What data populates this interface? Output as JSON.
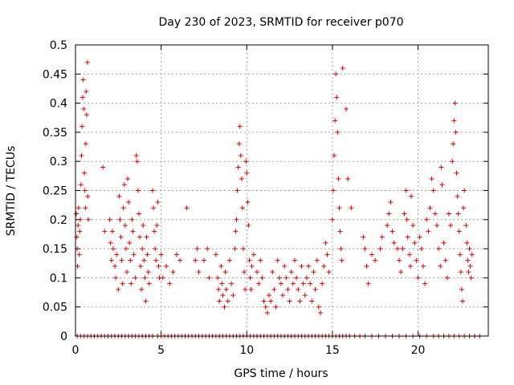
{
  "chart_data": {
    "type": "scatter",
    "title": "Day 230 of 2023, SRMTID for receiver p070",
    "xlabel": "GPS time / hours",
    "ylabel": "SRMTID / TECUs",
    "xlim": [
      0,
      24.1
    ],
    "ylim": [
      0,
      0.5
    ],
    "x_ticks": [
      0,
      5,
      10,
      15,
      20
    ],
    "x_tick_labels": [
      "0",
      "5",
      "10",
      "15",
      "20"
    ],
    "y_ticks": [
      0,
      0.05,
      0.1,
      0.15,
      0.2,
      0.25,
      0.3,
      0.35,
      0.4,
      0.45,
      0.5
    ],
    "y_tick_labels": [
      "0",
      "0.05",
      "0.1",
      "0.15",
      "0.2",
      "0.25",
      "0.3",
      "0.35",
      "0.4",
      "0.45",
      "0.5"
    ],
    "grid": true,
    "legend": "none",
    "marker": "plus",
    "series": [
      {
        "name": "SRMTID",
        "color": "#dd0000",
        "points": [
          [
            0.05,
            0.21
          ],
          [
            0.08,
            0.17
          ],
          [
            0.1,
            0.15
          ],
          [
            0.12,
            0.12
          ],
          [
            0.15,
            0.19
          ],
          [
            0.18,
            0.22
          ],
          [
            0.22,
            0.14
          ],
          [
            0.25,
            0.18
          ],
          [
            0.28,
            0.2
          ],
          [
            0.32,
            0.26
          ],
          [
            0.35,
            0.31
          ],
          [
            0.38,
            0.36
          ],
          [
            0.42,
            0.41
          ],
          [
            0.45,
            0.44
          ],
          [
            0.48,
            0.39
          ],
          [
            0.52,
            0.28
          ],
          [
            0.55,
            0.25
          ],
          [
            0.58,
            0.22
          ],
          [
            0.6,
            0.33
          ],
          [
            0.62,
            0.42
          ],
          [
            0.65,
            0.38
          ],
          [
            0.7,
            0.47
          ],
          [
            0.72,
            0.24
          ],
          [
            0.75,
            0.2
          ],
          [
            1.6,
            0.29
          ],
          [
            1.7,
            0.18
          ],
          [
            2.0,
            0.2
          ],
          [
            2.05,
            0.16
          ],
          [
            2.1,
            0.13
          ],
          [
            2.15,
            0.18
          ],
          [
            2.2,
            0.15
          ],
          [
            2.3,
            0.12
          ],
          [
            2.35,
            0.1
          ],
          [
            2.4,
            0.14
          ],
          [
            2.5,
            0.08
          ],
          [
            2.55,
            0.24
          ],
          [
            2.6,
            0.2
          ],
          [
            2.65,
            0.17
          ],
          [
            2.7,
            0.13
          ],
          [
            2.75,
            0.09
          ],
          [
            2.8,
            0.22
          ],
          [
            2.85,
            0.26
          ],
          [
            2.9,
            0.19
          ],
          [
            2.95,
            0.15
          ],
          [
            3.0,
            0.11
          ],
          [
            3.05,
            0.27
          ],
          [
            3.1,
            0.23
          ],
          [
            3.15,
            0.16
          ],
          [
            3.2,
            0.13
          ],
          [
            3.25,
            0.09
          ],
          [
            3.3,
            0.2
          ],
          [
            3.35,
            0.18
          ],
          [
            3.4,
            0.14
          ],
          [
            3.5,
            0.1
          ],
          [
            3.55,
            0.31
          ],
          [
            3.6,
            0.3
          ],
          [
            3.65,
            0.25
          ],
          [
            3.7,
            0.21
          ],
          [
            3.75,
            0.17
          ],
          [
            3.8,
            0.12
          ],
          [
            3.85,
            0.08
          ],
          [
            3.9,
            0.15
          ],
          [
            3.95,
            0.19
          ],
          [
            4.0,
            0.13
          ],
          [
            4.05,
            0.1
          ],
          [
            4.1,
            0.06
          ],
          [
            4.15,
            0.17
          ],
          [
            4.2,
            0.14
          ],
          [
            4.25,
            0.11
          ],
          [
            4.3,
            0.09
          ],
          [
            4.5,
            0.25
          ],
          [
            4.55,
            0.22
          ],
          [
            4.6,
            0.18
          ],
          [
            4.65,
            0.15
          ],
          [
            4.7,
            0.13
          ],
          [
            4.75,
            0.19
          ],
          [
            4.8,
            0.23
          ],
          [
            4.85,
            0.12
          ],
          [
            4.9,
            0.1
          ],
          [
            5.0,
            0.14
          ],
          [
            5.1,
            0.1
          ],
          [
            5.3,
            0.12
          ],
          [
            5.5,
            0.09
          ],
          [
            5.7,
            0.11
          ],
          [
            5.9,
            0.14
          ],
          [
            6.1,
            0.13
          ],
          [
            6.5,
            0.22
          ],
          [
            7.0,
            0.13
          ],
          [
            7.1,
            0.15
          ],
          [
            7.2,
            0.11
          ],
          [
            7.5,
            0.13
          ],
          [
            7.7,
            0.15
          ],
          [
            7.8,
            0.1
          ],
          [
            8.2,
            0.14
          ],
          [
            8.3,
            0.1
          ],
          [
            8.35,
            0.08
          ],
          [
            8.4,
            0.06
          ],
          [
            8.5,
            0.12
          ],
          [
            8.55,
            0.09
          ],
          [
            8.6,
            0.07
          ],
          [
            8.7,
            0.05
          ],
          [
            8.75,
            0.11
          ],
          [
            8.8,
            0.08
          ],
          [
            8.9,
            0.06
          ],
          [
            9.0,
            0.13
          ],
          [
            9.1,
            0.09
          ],
          [
            9.2,
            0.07
          ],
          [
            9.3,
            0.15
          ],
          [
            9.35,
            0.18
          ],
          [
            9.4,
            0.2
          ],
          [
            9.45,
            0.25
          ],
          [
            9.5,
            0.29
          ],
          [
            9.55,
            0.33
          ],
          [
            9.6,
            0.36
          ],
          [
            9.65,
            0.31
          ],
          [
            9.7,
            0.27
          ],
          [
            9.75,
            0.22
          ],
          [
            9.8,
            0.15
          ],
          [
            9.85,
            0.11
          ],
          [
            9.9,
            0.08
          ],
          [
            9.95,
            0.3
          ],
          [
            10.0,
            0.28
          ],
          [
            10.05,
            0.23
          ],
          [
            10.1,
            0.19
          ],
          [
            10.15,
            0.13
          ],
          [
            10.2,
            0.1
          ],
          [
            10.25,
            0.08
          ],
          [
            10.3,
            0.12
          ],
          [
            10.4,
            0.14
          ],
          [
            10.6,
            0.11
          ],
          [
            10.7,
            0.09
          ],
          [
            10.8,
            0.13
          ],
          [
            10.9,
            0.1
          ],
          [
            11.0,
            0.06
          ],
          [
            11.1,
            0.05
          ],
          [
            11.2,
            0.04
          ],
          [
            11.3,
            0.07
          ],
          [
            11.4,
            0.06
          ],
          [
            11.5,
            0.11
          ],
          [
            11.6,
            0.08
          ],
          [
            11.7,
            0.05
          ],
          [
            11.8,
            0.13
          ],
          [
            11.9,
            0.1
          ],
          [
            12.0,
            0.09
          ],
          [
            12.1,
            0.07
          ],
          [
            12.2,
            0.12
          ],
          [
            12.3,
            0.1
          ],
          [
            12.4,
            0.08
          ],
          [
            12.5,
            0.06
          ],
          [
            12.6,
            0.11
          ],
          [
            12.7,
            0.09
          ],
          [
            12.8,
            0.13
          ],
          [
            12.9,
            0.1
          ],
          [
            13.0,
            0.08
          ],
          [
            13.1,
            0.06
          ],
          [
            13.2,
            0.12
          ],
          [
            13.3,
            0.09
          ],
          [
            13.4,
            0.07
          ],
          [
            13.5,
            0.1
          ],
          [
            13.6,
            0.12
          ],
          [
            13.7,
            0.09
          ],
          [
            13.8,
            0.06
          ],
          [
            13.9,
            0.11
          ],
          [
            14.0,
            0.08
          ],
          [
            14.1,
            0.13
          ],
          [
            14.2,
            0.05
          ],
          [
            14.3,
            0.04
          ],
          [
            14.4,
            0.09
          ],
          [
            14.5,
            0.12
          ],
          [
            14.6,
            0.16
          ],
          [
            14.7,
            0.14
          ],
          [
            14.8,
            0.11
          ],
          [
            15.0,
            0.2
          ],
          [
            15.05,
            0.25
          ],
          [
            15.1,
            0.31
          ],
          [
            15.15,
            0.37
          ],
          [
            15.2,
            0.45
          ],
          [
            15.25,
            0.41
          ],
          [
            15.3,
            0.35
          ],
          [
            15.35,
            0.27
          ],
          [
            15.4,
            0.22
          ],
          [
            15.45,
            0.18
          ],
          [
            15.5,
            0.15
          ],
          [
            15.55,
            0.13
          ],
          [
            15.6,
            0.46
          ],
          [
            15.8,
            0.39
          ],
          [
            15.9,
            0.27
          ],
          [
            16.1,
            0.22
          ],
          [
            16.8,
            0.17
          ],
          [
            16.9,
            0.15
          ],
          [
            17.0,
            0.12
          ],
          [
            17.1,
            0.09
          ],
          [
            17.3,
            0.14
          ],
          [
            17.5,
            0.13
          ],
          [
            17.8,
            0.15
          ],
          [
            17.9,
            0.17
          ],
          [
            18.2,
            0.19
          ],
          [
            18.3,
            0.21
          ],
          [
            18.4,
            0.23
          ],
          [
            18.5,
            0.18
          ],
          [
            18.6,
            0.16
          ],
          [
            18.8,
            0.15
          ],
          [
            18.9,
            0.13
          ],
          [
            19.0,
            0.11
          ],
          [
            19.1,
            0.15
          ],
          [
            19.2,
            0.21
          ],
          [
            19.3,
            0.25
          ],
          [
            19.35,
            0.2
          ],
          [
            19.4,
            0.17
          ],
          [
            19.5,
            0.14
          ],
          [
            19.55,
            0.12
          ],
          [
            19.6,
            0.24
          ],
          [
            19.7,
            0.19
          ],
          [
            19.8,
            0.16
          ],
          [
            19.9,
            0.13
          ],
          [
            20.0,
            0.1
          ],
          [
            20.1,
            0.17
          ],
          [
            20.2,
            0.15
          ],
          [
            20.3,
            0.12
          ],
          [
            20.4,
            0.09
          ],
          [
            20.5,
            0.2
          ],
          [
            20.6,
            0.18
          ],
          [
            20.7,
            0.22
          ],
          [
            20.8,
            0.27
          ],
          [
            20.9,
            0.25
          ],
          [
            21.0,
            0.21
          ],
          [
            21.1,
            0.19
          ],
          [
            21.2,
            0.15
          ],
          [
            21.3,
            0.12
          ],
          [
            21.35,
            0.29
          ],
          [
            21.4,
            0.26
          ],
          [
            21.5,
            0.16
          ],
          [
            21.6,
            0.13
          ],
          [
            21.7,
            0.1
          ],
          [
            21.8,
            0.21
          ],
          [
            21.9,
            0.19
          ],
          [
            22.0,
            0.3
          ],
          [
            22.05,
            0.33
          ],
          [
            22.1,
            0.37
          ],
          [
            22.15,
            0.4
          ],
          [
            22.2,
            0.35
          ],
          [
            22.25,
            0.28
          ],
          [
            22.3,
            0.24
          ],
          [
            22.35,
            0.21
          ],
          [
            22.4,
            0.18
          ],
          [
            22.45,
            0.14
          ],
          [
            22.5,
            0.11
          ],
          [
            22.55,
            0.08
          ],
          [
            22.6,
            0.06
          ],
          [
            22.65,
            0.22
          ],
          [
            22.7,
            0.25
          ],
          [
            22.8,
            0.19
          ],
          [
            22.85,
            0.16
          ],
          [
            22.9,
            0.13
          ],
          [
            22.95,
            0.11
          ],
          [
            23.0,
            0.15
          ],
          [
            23.05,
            0.12
          ],
          [
            23.1,
            0.1
          ],
          [
            23.15,
            0.14
          ]
        ],
        "zero_points": [
          0.1,
          0.3,
          0.5,
          0.7,
          0.9,
          1.1,
          1.3,
          1.5,
          1.7,
          1.9,
          2.1,
          2.3,
          2.5,
          2.7,
          2.9,
          3.1,
          3.3,
          3.5,
          3.7,
          3.9,
          4.1,
          4.3,
          4.5,
          4.8,
          5.0,
          5.2,
          5.4,
          5.6,
          5.8,
          6.0,
          6.2,
          6.4,
          6.6,
          6.8,
          7.0,
          7.2,
          7.4,
          7.6,
          7.8,
          8.0,
          8.2,
          8.4,
          8.6,
          8.8,
          9.0,
          9.2,
          9.4,
          9.6,
          9.8,
          10.0,
          10.2,
          10.4,
          10.6,
          10.8,
          11.0,
          11.2,
          11.4,
          11.6,
          11.8,
          12.0,
          12.2,
          12.4,
          12.6,
          12.8,
          13.0,
          13.2,
          13.4,
          13.6,
          13.8,
          14.0,
          14.2,
          14.4,
          14.6,
          14.8,
          15.0,
          15.2,
          15.4,
          15.6,
          15.8,
          16.0,
          16.3,
          16.6,
          16.9,
          17.3,
          17.7,
          18.1,
          18.5,
          18.9,
          19.3,
          19.7,
          20.1,
          20.5,
          20.9,
          21.2,
          21.5,
          21.8,
          22.1,
          22.4,
          22.7,
          23.0,
          23.3,
          23.6
        ]
      }
    ]
  }
}
